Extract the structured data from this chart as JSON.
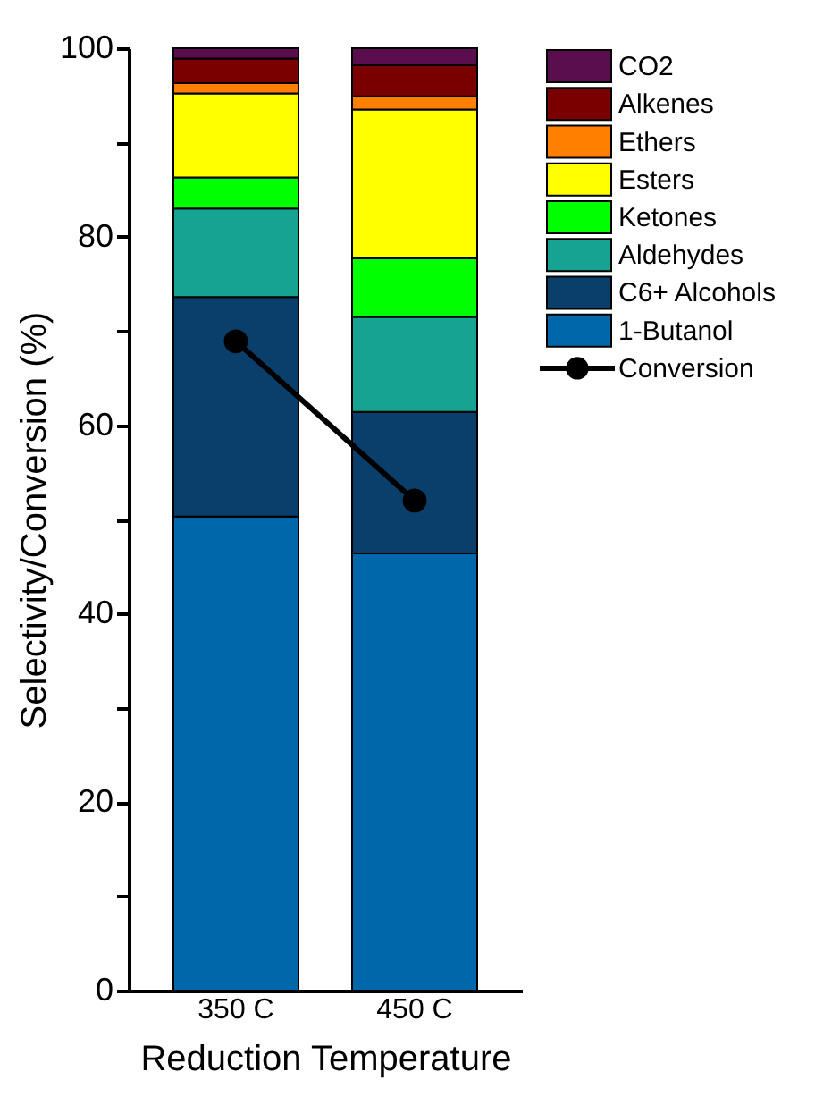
{
  "chart_data": {
    "type": "bar",
    "stacked": true,
    "xlabel": "Reduction Temperature",
    "ylabel": "Selectivity/Conversion (%)",
    "categories": [
      "350 C",
      "450 C"
    ],
    "series": [
      {
        "name": "1-Butanol",
        "color": "#0068aa",
        "values": [
          50.3,
          46.4
        ]
      },
      {
        "name": "C6+ Alcohols",
        "color": "#0a3f6b",
        "values": [
          23.3,
          15.0
        ]
      },
      {
        "name": "Aldehydes",
        "color": "#17a391",
        "values": [
          9.4,
          10.1
        ]
      },
      {
        "name": "Ketones",
        "color": "#00ff00",
        "values": [
          3.3,
          6.2
        ]
      },
      {
        "name": "Esters",
        "color": "#ffff00",
        "values": [
          8.9,
          15.8
        ]
      },
      {
        "name": "Ethers",
        "color": "#ff7f00",
        "values": [
          1.1,
          1.4
        ]
      },
      {
        "name": "Alkenes",
        "color": "#7a0000",
        "values": [
          2.6,
          3.3
        ]
      },
      {
        "name": "CO2",
        "color": "#5a0e4e",
        "values": [
          1.1,
          1.8
        ]
      },
      {
        "name": "Conversion",
        "type": "line",
        "marker": "circle",
        "color": "#000000",
        "values": [
          68.9,
          52.0
        ]
      }
    ],
    "ylim": [
      0,
      100
    ],
    "yticks": [
      0,
      {
        "value": 10,
        "label": null
      },
      20,
      {
        "value": 30,
        "label": null
      },
      40,
      {
        "value": 50,
        "label": null
      },
      60,
      {
        "value": 70,
        "label": null
      },
      80,
      {
        "value": 90,
        "label": null
      },
      100
    ],
    "grid": false,
    "legend": "right"
  }
}
